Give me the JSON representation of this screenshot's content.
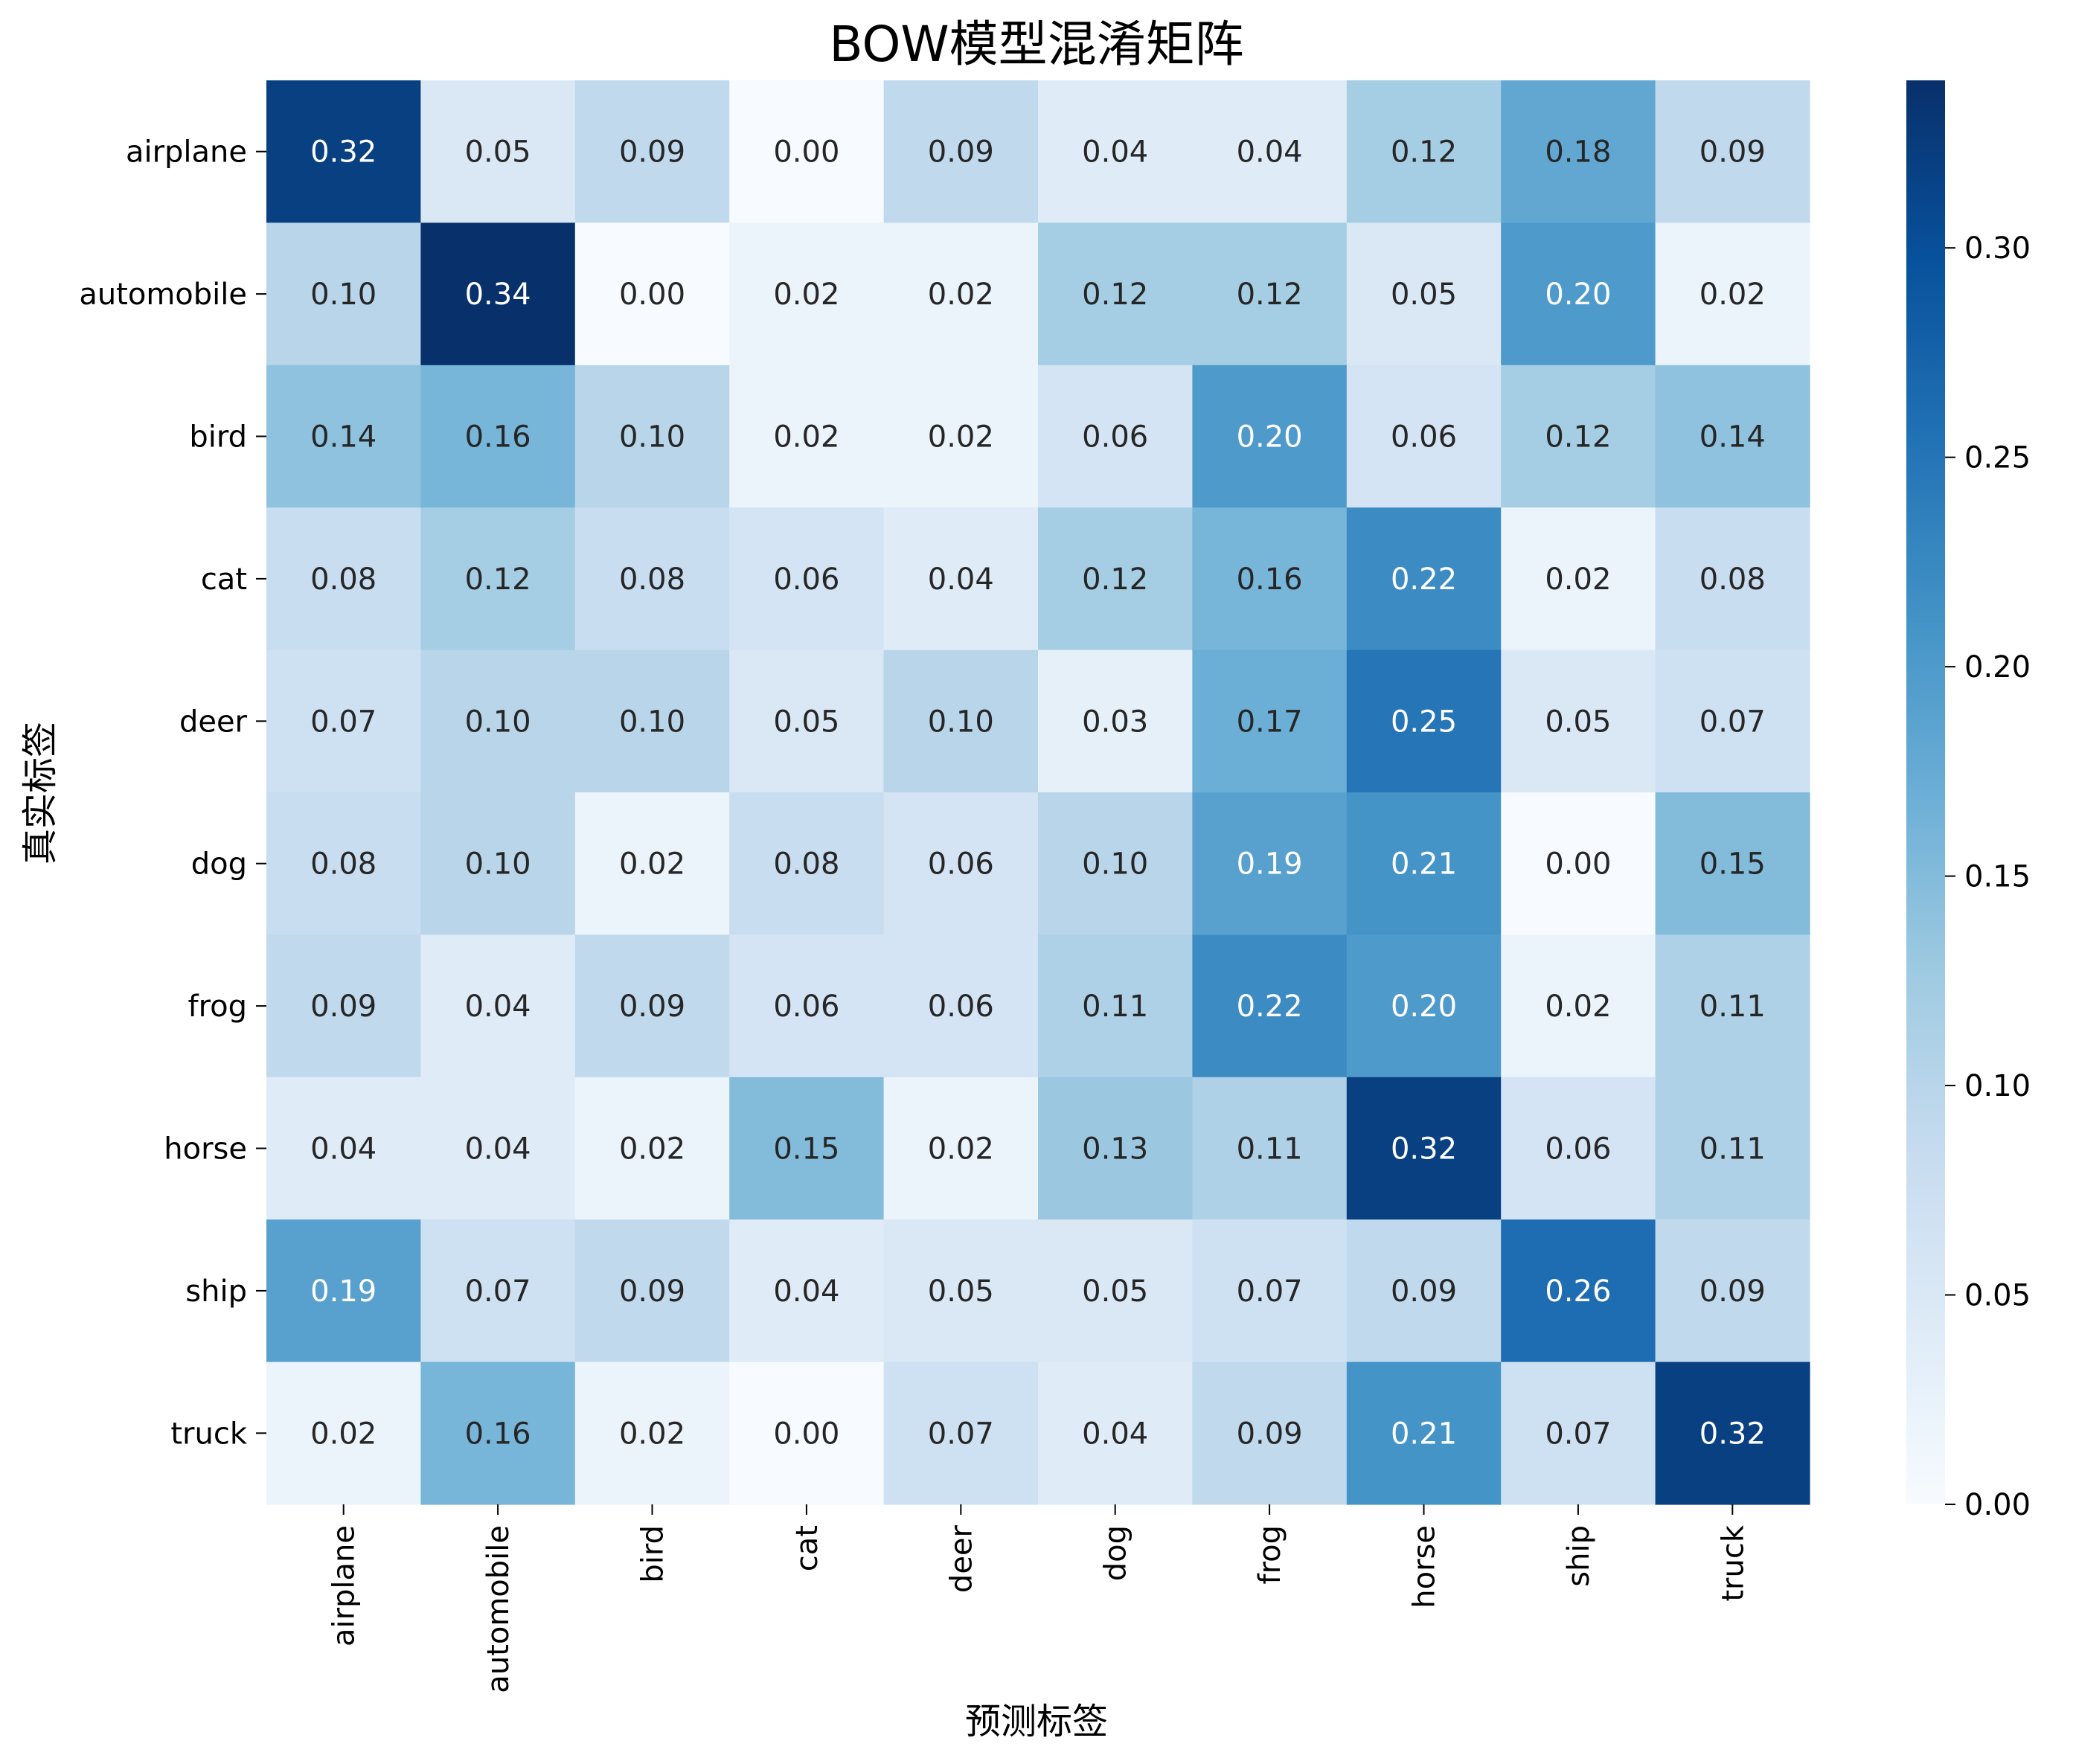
{
  "chart_data": {
    "type": "heatmap",
    "title": "BOW模型混淆矩阵",
    "xlabel": "预测标签",
    "ylabel": "真实标签",
    "x_categories": [
      "airplane",
      "automobile",
      "bird",
      "cat",
      "deer",
      "dog",
      "frog",
      "horse",
      "ship",
      "truck"
    ],
    "y_categories": [
      "airplane",
      "automobile",
      "bird",
      "cat",
      "deer",
      "dog",
      "frog",
      "horse",
      "ship",
      "truck"
    ],
    "values": [
      [
        0.32,
        0.05,
        0.09,
        0.0,
        0.09,
        0.04,
        0.04,
        0.12,
        0.18,
        0.09
      ],
      [
        0.1,
        0.34,
        0.0,
        0.02,
        0.02,
        0.12,
        0.12,
        0.05,
        0.2,
        0.02
      ],
      [
        0.14,
        0.16,
        0.1,
        0.02,
        0.02,
        0.06,
        0.2,
        0.06,
        0.12,
        0.14
      ],
      [
        0.08,
        0.12,
        0.08,
        0.06,
        0.04,
        0.12,
        0.16,
        0.22,
        0.02,
        0.08
      ],
      [
        0.07,
        0.1,
        0.1,
        0.05,
        0.1,
        0.03,
        0.17,
        0.25,
        0.05,
        0.07
      ],
      [
        0.08,
        0.1,
        0.02,
        0.08,
        0.06,
        0.1,
        0.19,
        0.21,
        0.0,
        0.15
      ],
      [
        0.09,
        0.04,
        0.09,
        0.06,
        0.06,
        0.11,
        0.22,
        0.2,
        0.02,
        0.11
      ],
      [
        0.04,
        0.04,
        0.02,
        0.15,
        0.02,
        0.13,
        0.11,
        0.32,
        0.06,
        0.11
      ],
      [
        0.19,
        0.07,
        0.09,
        0.04,
        0.05,
        0.05,
        0.07,
        0.09,
        0.26,
        0.09
      ],
      [
        0.02,
        0.16,
        0.02,
        0.0,
        0.07,
        0.04,
        0.09,
        0.21,
        0.07,
        0.32
      ]
    ],
    "colormap": "Blues",
    "colorbar": {
      "range": [
        0.0,
        0.34
      ],
      "ticks": [
        0.0,
        0.05,
        0.1,
        0.15,
        0.2,
        0.25,
        0.3
      ],
      "tick_labels": [
        "0.00",
        "0.05",
        "0.10",
        "0.15",
        "0.20",
        "0.25",
        "0.30"
      ]
    },
    "annotations": "cell values shown with two decimals",
    "grid": false
  }
}
